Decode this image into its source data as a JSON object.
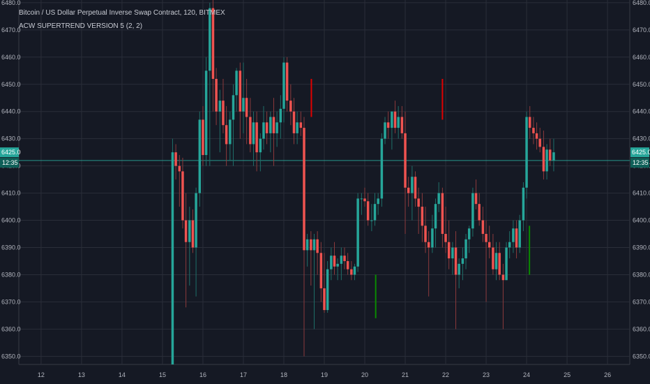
{
  "header": {
    "symbol_line": "Bitcoin / US Dollar Perpetual Inverse Swap Contract, 120, BITMEX",
    "indicator_line": "ACW SUPERTREND VERSION 5 (2, 2)"
  },
  "price_tag": {
    "price": "6425.0",
    "countdown": "12:35"
  },
  "colors": {
    "background": "#151924",
    "grid": "#2a2e39",
    "up": "#26a69a",
    "down": "#ef5350",
    "up_wick": "#1f6f69",
    "down_wick": "#8c3a3c",
    "supertrend_up": "#0a8a00",
    "supertrend_down": "#e00000",
    "crosshair": "#2bb6a6",
    "text": "#b2b5be"
  },
  "chart_data": {
    "type": "candlestick",
    "title": "Bitcoin / US Dollar Perpetual Inverse Swap Contract, 120, BITMEX",
    "ylim": [
      6347,
      6481
    ],
    "xlim": [
      11.45,
      26.55
    ],
    "x_ticks": [
      12,
      13,
      14,
      15,
      16,
      17,
      18,
      19,
      20,
      21,
      22,
      23,
      24,
      25,
      26
    ],
    "y_ticks": [
      6350.0,
      6360.0,
      6370.0,
      6380.0,
      6390.0,
      6400.0,
      6410.0,
      6420.0,
      6430.0,
      6440.0,
      6450.0,
      6460.0,
      6470.0,
      6480.0
    ],
    "last_price": 6425.0,
    "crosshair_price": 6422.0,
    "candles": [
      {
        "t": 15.25,
        "o": 6347,
        "h": 6430,
        "l": 6347,
        "c": 6425
      },
      {
        "t": 15.33,
        "o": 6425,
        "h": 6428,
        "l": 6415,
        "c": 6420
      },
      {
        "t": 15.42,
        "o": 6420,
        "h": 6424,
        "l": 6405,
        "c": 6418
      },
      {
        "t": 15.5,
        "o": 6418,
        "h": 6423,
        "l": 6397,
        "c": 6400
      },
      {
        "t": 15.58,
        "o": 6400,
        "h": 6410,
        "l": 6368,
        "c": 6392
      },
      {
        "t": 15.67,
        "o": 6392,
        "h": 6405,
        "l": 6376,
        "c": 6400
      },
      {
        "t": 15.75,
        "o": 6400,
        "h": 6404,
        "l": 6388,
        "c": 6390
      },
      {
        "t": 15.83,
        "o": 6390,
        "h": 6412,
        "l": 6372,
        "c": 6410
      },
      {
        "t": 15.92,
        "o": 6410,
        "h": 6440,
        "l": 6405,
        "c": 6437
      },
      {
        "t": 16.0,
        "o": 6437,
        "h": 6442,
        "l": 6420,
        "c": 6424
      },
      {
        "t": 16.08,
        "o": 6424,
        "h": 6460,
        "l": 6420,
        "c": 6455
      },
      {
        "t": 16.17,
        "o": 6455,
        "h": 6480,
        "l": 6420,
        "c": 6478
      },
      {
        "t": 16.25,
        "o": 6478,
        "h": 6481,
        "l": 6440,
        "c": 6452
      },
      {
        "t": 16.33,
        "o": 6452,
        "h": 6456,
        "l": 6435,
        "c": 6440
      },
      {
        "t": 16.42,
        "o": 6440,
        "h": 6448,
        "l": 6425,
        "c": 6444
      },
      {
        "t": 16.5,
        "o": 6444,
        "h": 6452,
        "l": 6432,
        "c": 6435
      },
      {
        "t": 16.58,
        "o": 6435,
        "h": 6442,
        "l": 6420,
        "c": 6428
      },
      {
        "t": 16.67,
        "o": 6428,
        "h": 6440,
        "l": 6422,
        "c": 6437
      },
      {
        "t": 16.75,
        "o": 6437,
        "h": 6450,
        "l": 6420,
        "c": 6446
      },
      {
        "t": 16.83,
        "o": 6446,
        "h": 6456,
        "l": 6440,
        "c": 6455
      },
      {
        "t": 16.92,
        "o": 6455,
        "h": 6458,
        "l": 6430,
        "c": 6440
      },
      {
        "t": 17.0,
        "o": 6440,
        "h": 6458,
        "l": 6432,
        "c": 6445
      },
      {
        "t": 17.08,
        "o": 6445,
        "h": 6452,
        "l": 6428,
        "c": 6438
      },
      {
        "t": 17.17,
        "o": 6438,
        "h": 6445,
        "l": 6425,
        "c": 6428
      },
      {
        "t": 17.25,
        "o": 6428,
        "h": 6440,
        "l": 6420,
        "c": 6436
      },
      {
        "t": 17.33,
        "o": 6436,
        "h": 6440,
        "l": 6418,
        "c": 6425
      },
      {
        "t": 17.42,
        "o": 6425,
        "h": 6432,
        "l": 6418,
        "c": 6430
      },
      {
        "t": 17.5,
        "o": 6430,
        "h": 6442,
        "l": 6426,
        "c": 6436
      },
      {
        "t": 17.58,
        "o": 6436,
        "h": 6440,
        "l": 6428,
        "c": 6432
      },
      {
        "t": 17.67,
        "o": 6432,
        "h": 6440,
        "l": 6425,
        "c": 6438
      },
      {
        "t": 17.75,
        "o": 6438,
        "h": 6445,
        "l": 6420,
        "c": 6432
      },
      {
        "t": 17.83,
        "o": 6432,
        "h": 6440,
        "l": 6427,
        "c": 6436
      },
      {
        "t": 17.92,
        "o": 6436,
        "h": 6446,
        "l": 6430,
        "c": 6441
      },
      {
        "t": 18.0,
        "o": 6441,
        "h": 6460,
        "l": 6436,
        "c": 6458
      },
      {
        "t": 18.08,
        "o": 6458,
        "h": 6460,
        "l": 6440,
        "c": 6444
      },
      {
        "t": 18.17,
        "o": 6444,
        "h": 6450,
        "l": 6435,
        "c": 6440
      },
      {
        "t": 18.25,
        "o": 6440,
        "h": 6445,
        "l": 6428,
        "c": 6432
      },
      {
        "t": 18.33,
        "o": 6432,
        "h": 6440,
        "l": 6428,
        "c": 6436
      },
      {
        "t": 18.42,
        "o": 6436,
        "h": 6440,
        "l": 6431,
        "c": 6434
      },
      {
        "t": 18.5,
        "o": 6434,
        "h": 6438,
        "l": 6350,
        "c": 6389
      },
      {
        "t": 18.58,
        "o": 6389,
        "h": 6395,
        "l": 6383,
        "c": 6393
      },
      {
        "t": 18.67,
        "o": 6393,
        "h": 6396,
        "l": 6376,
        "c": 6389
      },
      {
        "t": 18.75,
        "o": 6389,
        "h": 6395,
        "l": 6360,
        "c": 6393
      },
      {
        "t": 18.83,
        "o": 6393,
        "h": 6396,
        "l": 6380,
        "c": 6388
      },
      {
        "t": 18.92,
        "o": 6388,
        "h": 6392,
        "l": 6370,
        "c": 6375
      },
      {
        "t": 19.0,
        "o": 6375,
        "h": 6388,
        "l": 6366,
        "c": 6367
      },
      {
        "t": 19.08,
        "o": 6367,
        "h": 6385,
        "l": 6366,
        "c": 6382
      },
      {
        "t": 19.17,
        "o": 6382,
        "h": 6390,
        "l": 6378,
        "c": 6387
      },
      {
        "t": 19.25,
        "o": 6387,
        "h": 6392,
        "l": 6380,
        "c": 6383
      },
      {
        "t": 19.33,
        "o": 6383,
        "h": 6386,
        "l": 6378,
        "c": 6384
      },
      {
        "t": 19.42,
        "o": 6384,
        "h": 6390,
        "l": 6378,
        "c": 6387
      },
      {
        "t": 19.5,
        "o": 6387,
        "h": 6390,
        "l": 6382,
        "c": 6385
      },
      {
        "t": 19.58,
        "o": 6385,
        "h": 6388,
        "l": 6380,
        "c": 6382
      },
      {
        "t": 19.67,
        "o": 6382,
        "h": 6385,
        "l": 6378,
        "c": 6380
      },
      {
        "t": 19.75,
        "o": 6380,
        "h": 6384,
        "l": 6378,
        "c": 6383
      },
      {
        "t": 19.83,
        "o": 6383,
        "h": 6410,
        "l": 6381,
        "c": 6408
      },
      {
        "t": 19.92,
        "o": 6408,
        "h": 6410,
        "l": 6402,
        "c": 6408
      },
      {
        "t": 20.0,
        "o": 6408,
        "h": 6412,
        "l": 6405,
        "c": 6407
      },
      {
        "t": 20.08,
        "o": 6407,
        "h": 6410,
        "l": 6398,
        "c": 6400
      },
      {
        "t": 20.17,
        "o": 6400,
        "h": 6406,
        "l": 6396,
        "c": 6400
      },
      {
        "t": 20.25,
        "o": 6400,
        "h": 6410,
        "l": 6398,
        "c": 6406
      },
      {
        "t": 20.33,
        "o": 6406,
        "h": 6410,
        "l": 6402,
        "c": 6408
      },
      {
        "t": 20.42,
        "o": 6408,
        "h": 6432,
        "l": 6405,
        "c": 6430
      },
      {
        "t": 20.5,
        "o": 6430,
        "h": 6438,
        "l": 6428,
        "c": 6436
      },
      {
        "t": 20.58,
        "o": 6436,
        "h": 6440,
        "l": 6430,
        "c": 6434
      },
      {
        "t": 20.67,
        "o": 6434,
        "h": 6440,
        "l": 6426,
        "c": 6440
      },
      {
        "t": 20.75,
        "o": 6440,
        "h": 6444,
        "l": 6432,
        "c": 6434
      },
      {
        "t": 20.83,
        "o": 6434,
        "h": 6442,
        "l": 6430,
        "c": 6438
      },
      {
        "t": 20.92,
        "o": 6438,
        "h": 6442,
        "l": 6430,
        "c": 6432
      },
      {
        "t": 21.0,
        "o": 6432,
        "h": 6440,
        "l": 6395,
        "c": 6412
      },
      {
        "t": 21.08,
        "o": 6412,
        "h": 6416,
        "l": 6405,
        "c": 6410
      },
      {
        "t": 21.17,
        "o": 6410,
        "h": 6420,
        "l": 6400,
        "c": 6416
      },
      {
        "t": 21.25,
        "o": 6416,
        "h": 6418,
        "l": 6405,
        "c": 6408
      },
      {
        "t": 21.33,
        "o": 6408,
        "h": 6412,
        "l": 6395,
        "c": 6405
      },
      {
        "t": 21.42,
        "o": 6405,
        "h": 6410,
        "l": 6392,
        "c": 6398
      },
      {
        "t": 21.5,
        "o": 6398,
        "h": 6405,
        "l": 6388,
        "c": 6392
      },
      {
        "t": 21.58,
        "o": 6392,
        "h": 6396,
        "l": 6372,
        "c": 6390
      },
      {
        "t": 21.67,
        "o": 6390,
        "h": 6402,
        "l": 6388,
        "c": 6397
      },
      {
        "t": 21.75,
        "o": 6397,
        "h": 6408,
        "l": 6390,
        "c": 6406
      },
      {
        "t": 21.83,
        "o": 6406,
        "h": 6414,
        "l": 6403,
        "c": 6410
      },
      {
        "t": 21.92,
        "o": 6410,
        "h": 6412,
        "l": 6390,
        "c": 6395
      },
      {
        "t": 22.0,
        "o": 6395,
        "h": 6405,
        "l": 6388,
        "c": 6392
      },
      {
        "t": 22.08,
        "o": 6392,
        "h": 6400,
        "l": 6382,
        "c": 6386
      },
      {
        "t": 22.17,
        "o": 6386,
        "h": 6392,
        "l": 6380,
        "c": 6390
      },
      {
        "t": 22.25,
        "o": 6390,
        "h": 6396,
        "l": 6360,
        "c": 6380
      },
      {
        "t": 22.33,
        "o": 6380,
        "h": 6386,
        "l": 6375,
        "c": 6384
      },
      {
        "t": 22.42,
        "o": 6384,
        "h": 6390,
        "l": 6378,
        "c": 6386
      },
      {
        "t": 22.5,
        "o": 6386,
        "h": 6395,
        "l": 6382,
        "c": 6393
      },
      {
        "t": 22.58,
        "o": 6393,
        "h": 6398,
        "l": 6388,
        "c": 6397
      },
      {
        "t": 22.67,
        "o": 6397,
        "h": 6412,
        "l": 6394,
        "c": 6410
      },
      {
        "t": 22.75,
        "o": 6410,
        "h": 6415,
        "l": 6404,
        "c": 6406
      },
      {
        "t": 22.83,
        "o": 6406,
        "h": 6410,
        "l": 6398,
        "c": 6400
      },
      {
        "t": 22.92,
        "o": 6400,
        "h": 6405,
        "l": 6392,
        "c": 6395
      },
      {
        "t": 23.0,
        "o": 6395,
        "h": 6400,
        "l": 6370,
        "c": 6392
      },
      {
        "t": 23.08,
        "o": 6392,
        "h": 6398,
        "l": 6386,
        "c": 6390
      },
      {
        "t": 23.17,
        "o": 6390,
        "h": 6395,
        "l": 6380,
        "c": 6382
      },
      {
        "t": 23.25,
        "o": 6382,
        "h": 6392,
        "l": 6378,
        "c": 6388
      },
      {
        "t": 23.33,
        "o": 6388,
        "h": 6392,
        "l": 6378,
        "c": 6380
      },
      {
        "t": 23.42,
        "o": 6380,
        "h": 6384,
        "l": 6360,
        "c": 6378
      },
      {
        "t": 23.5,
        "o": 6378,
        "h": 6392,
        "l": 6378,
        "c": 6390
      },
      {
        "t": 23.58,
        "o": 6390,
        "h": 6396,
        "l": 6386,
        "c": 6392
      },
      {
        "t": 23.67,
        "o": 6392,
        "h": 6400,
        "l": 6388,
        "c": 6397
      },
      {
        "t": 23.75,
        "o": 6397,
        "h": 6400,
        "l": 6386,
        "c": 6390
      },
      {
        "t": 23.83,
        "o": 6390,
        "h": 6402,
        "l": 6388,
        "c": 6400
      },
      {
        "t": 23.92,
        "o": 6400,
        "h": 6414,
        "l": 6396,
        "c": 6412
      },
      {
        "t": 24.0,
        "o": 6412,
        "h": 6440,
        "l": 6408,
        "c": 6438
      },
      {
        "t": 24.08,
        "o": 6438,
        "h": 6442,
        "l": 6430,
        "c": 6434
      },
      {
        "t": 24.17,
        "o": 6434,
        "h": 6438,
        "l": 6428,
        "c": 6432
      },
      {
        "t": 24.25,
        "o": 6432,
        "h": 6436,
        "l": 6426,
        "c": 6430
      },
      {
        "t": 24.33,
        "o": 6430,
        "h": 6434,
        "l": 6425,
        "c": 6427
      },
      {
        "t": 24.42,
        "o": 6427,
        "h": 6433,
        "l": 6415,
        "c": 6418
      },
      {
        "t": 24.5,
        "o": 6418,
        "h": 6428,
        "l": 6415,
        "c": 6426
      },
      {
        "t": 24.58,
        "o": 6426,
        "h": 6430,
        "l": 6420,
        "c": 6422
      },
      {
        "t": 24.67,
        "o": 6422,
        "h": 6430,
        "l": 6418,
        "c": 6425
      }
    ],
    "supertrend_segments": [
      {
        "color": "down",
        "x": 18.68,
        "y0": 6438,
        "y1": 6452
      },
      {
        "color": "up",
        "x": 20.27,
        "y0": 6364,
        "y1": 6380
      },
      {
        "color": "down",
        "x": 21.92,
        "y0": 6437,
        "y1": 6452
      },
      {
        "color": "up",
        "x": 24.07,
        "y0": 6380,
        "y1": 6398
      }
    ]
  }
}
